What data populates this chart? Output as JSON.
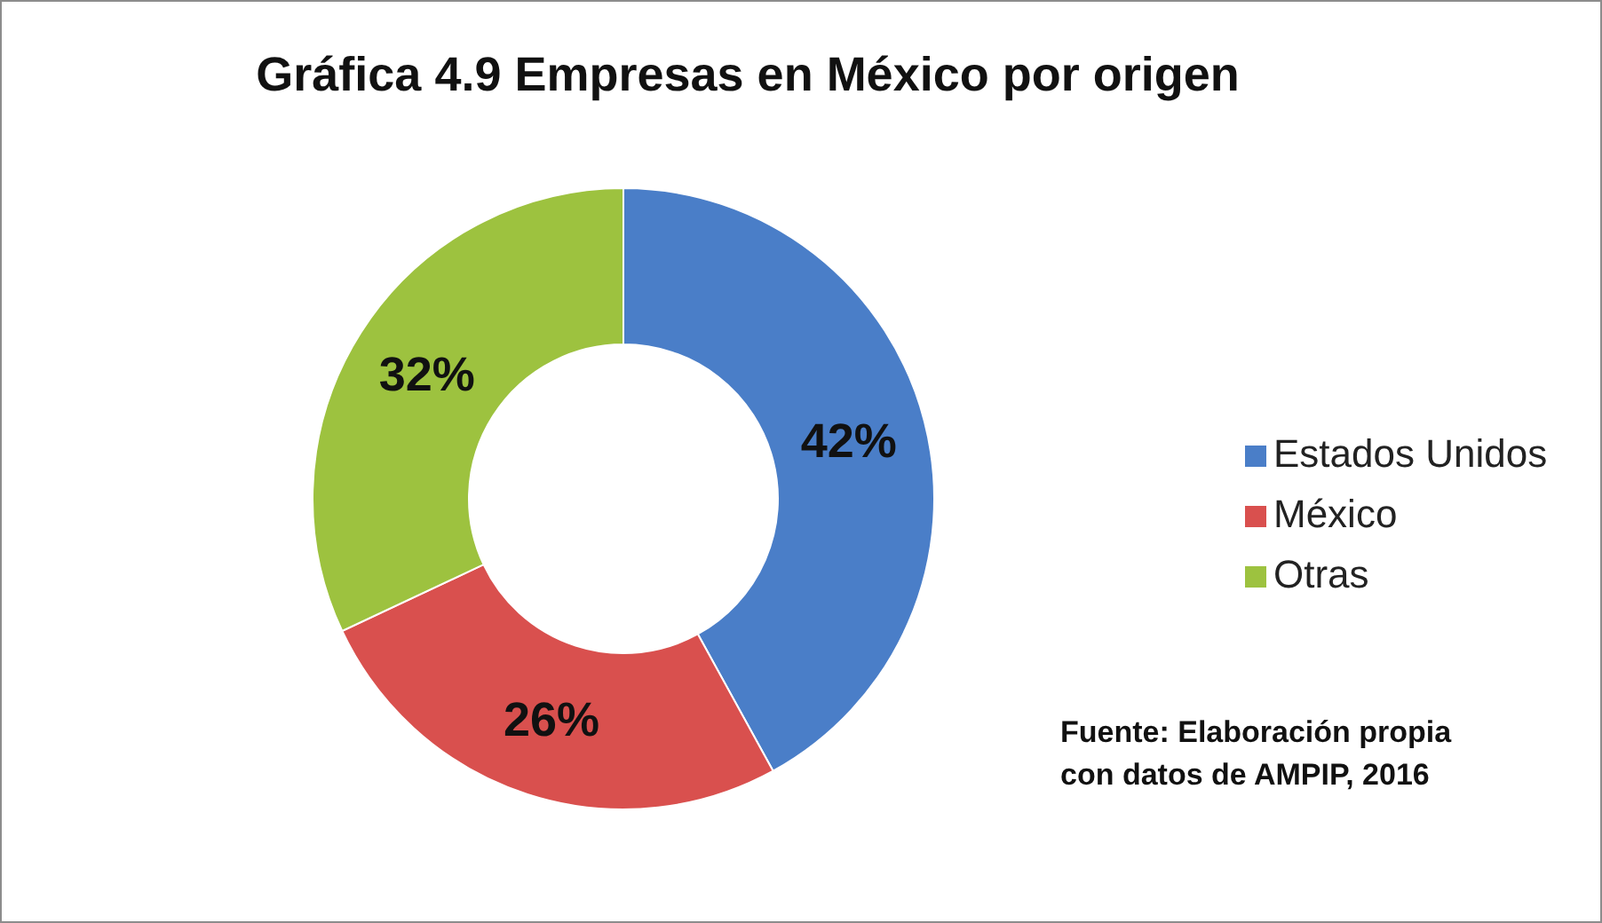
{
  "chart_data": {
    "type": "donut",
    "title": "Gráfica 4.9 Empresas en México por origen",
    "categories": [
      "Estados Unidos",
      "México",
      "Otras"
    ],
    "values": [
      42,
      26,
      32
    ],
    "colors": [
      "#4a7ec8",
      "#d9504e",
      "#9dc23f"
    ],
    "value_labels": [
      "42%",
      "26%",
      "32%"
    ],
    "legend": "right",
    "annotations": [
      "Fuente: Elaboración propia con datos de AMPIP, 2016"
    ]
  }
}
